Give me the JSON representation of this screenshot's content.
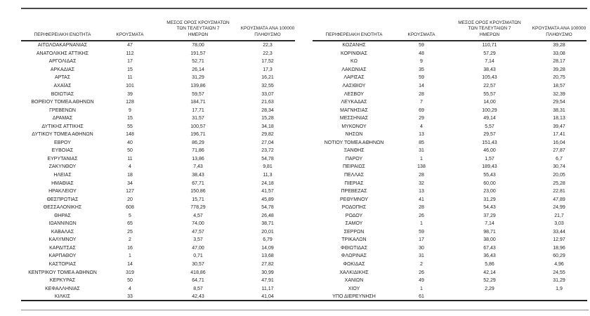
{
  "report": {
    "columns": {
      "region": "ΠΕΡΙΦΕΡΕΙΑΚΗ ΕΝΟΤΗΤΑ",
      "cases": "ΚΡΟΥΣΜΑΤΑ",
      "avg7": "ΜΕΣΟΣ ΟΡΟΣ ΚΡΟΥΣΜΑΤΩΝ\nΤΩΝ ΤΕΛΕΥΤΑΙΩΝ 7\nΗΜΕΡΩΝ",
      "per100k": "ΚΡΟΥΣΜΑΤΑ ΑΝΑ 100000\nΠΛΗΘΥΣΜΟ"
    },
    "left_table": {
      "rows": [
        [
          "ΑΙΤΩΛΟΑΚΑΡΝΑΝΙΑΣ",
          "47",
          "78,00",
          "22,3"
        ],
        [
          "ΑΝΑΤΟΛΙΚΗΣ ΑΤΤΙΚΗΣ",
          "112",
          "191,57",
          "22,3"
        ],
        [
          "ΑΡΓΟΛΙΔΑΣ",
          "17",
          "52,71",
          "17,52"
        ],
        [
          "ΑΡΚΑΔΙΑΣ",
          "15",
          "26,14",
          "17,3"
        ],
        [
          "ΑΡΤΑΣ",
          "11",
          "31,29",
          "16,21"
        ],
        [
          "ΑΧΑΪΑΣ",
          "101",
          "139,86",
          "32,55"
        ],
        [
          "ΒΟΙΩΤΙΑΣ",
          "39",
          "59,57",
          "33,07"
        ],
        [
          "ΒΟΡΕΙΟΥ ΤΟΜΕΑ ΑΘΗΝΩΝ",
          "128",
          "184,71",
          "21,63"
        ],
        [
          "ΓΡΕΒΕΝΩΝ",
          "9",
          "17,71",
          "28,34"
        ],
        [
          "ΔΡΑΜΑΣ",
          "15",
          "31,57",
          "15,28"
        ],
        [
          "ΔΥΤΙΚΗΣ ΑΤΤΙΚΗΣ",
          "55",
          "100,57",
          "34,18"
        ],
        [
          "ΔΥΤΙΚΟΥ ΤΟΜΕΑ ΑΘΗΝΩΝ",
          "148",
          "196,71",
          "29,82"
        ],
        [
          "ΕΒΡΟΥ",
          "40",
          "86,29",
          "27,04"
        ],
        [
          "ΕΥΒΟΙΑΣ",
          "50",
          "71,86",
          "23,72"
        ],
        [
          "ΕΥΡΥΤΑΝΙΑΣ",
          "11",
          "13,86",
          "54,78"
        ],
        [
          "ΖΑΚΥΝΘΟΥ",
          "4",
          "7,43",
          "9,81"
        ],
        [
          "ΗΛΕΙΑΣ",
          "18",
          "38,43",
          "11,3"
        ],
        [
          "ΗΜΑΘΙΑΣ",
          "34",
          "67,71",
          "24,18"
        ],
        [
          "ΗΡΑΚΛΕΙΟΥ",
          "127",
          "150,86",
          "41,57"
        ],
        [
          "ΘΕΣΠΡΩΤΙΑΣ",
          "20",
          "15,71",
          "45,89"
        ],
        [
          "ΘΕΣΣΑΛΟΝΙΚΗΣ",
          "608",
          "778,29",
          "54,78"
        ],
        [
          "ΘΗΡΑΣ",
          "5",
          "4,57",
          "26,48"
        ],
        [
          "ΙΩΑΝΝΙΝΩΝ",
          "65",
          "74,00",
          "38,71"
        ],
        [
          "ΚΑΒΑΛΑΣ",
          "25",
          "47,57",
          "20,01"
        ],
        [
          "ΚΑΛΥΜΝΟΥ",
          "2",
          "3,57",
          "6,79"
        ],
        [
          "ΚΑΡΔΙΤΣΑΣ",
          "16",
          "47,00",
          "14,09"
        ],
        [
          "ΚΑΡΠΑΘΟΥ",
          "1",
          "0,71",
          "13,68"
        ],
        [
          "ΚΑΣΤΟΡΙΑΣ",
          "14",
          "30,57",
          "27,82"
        ],
        [
          "ΚΕΝΤΡΙΚΟΥ ΤΟΜΕΑ ΑΘΗΝΩΝ",
          "319",
          "418,86",
          "30,99"
        ],
        [
          "ΚΕΡΚΥΡΑΣ",
          "50",
          "64,71",
          "47,91"
        ],
        [
          "ΚΕΦΑΛΛΗΝΙΑΣ",
          "4",
          "8,57",
          "11,17"
        ],
        [
          "ΚΙΛΚΙΣ",
          "33",
          "42,43",
          "41,04"
        ]
      ]
    },
    "right_table": {
      "rows": [
        [
          "ΚΟΖΑΝΗΣ",
          "59",
          "110,71",
          "39,28"
        ],
        [
          "ΚΟΡΙΝΘΙΑΣ",
          "48",
          "57,29",
          "33,08"
        ],
        [
          "ΚΩ",
          "9",
          "7,14",
          "28,17"
        ],
        [
          "ΛΑΚΩΝΙΑΣ",
          "35",
          "38,43",
          "39,28"
        ],
        [
          "ΛΑΡΙΣΑΣ",
          "59",
          "105,43",
          "20,75"
        ],
        [
          "ΛΑΣΙΘΙΟΥ",
          "14",
          "22,57",
          "18,57"
        ],
        [
          "ΛΕΣΒΟΥ",
          "28",
          "55,57",
          "32,39"
        ],
        [
          "ΛΕΥΚΑΔΑΣ",
          "7",
          "14,00",
          "29,54"
        ],
        [
          "ΜΑΓΝΗΣΙΑΣ",
          "69",
          "100,29",
          "38,31"
        ],
        [
          "ΜΕΣΣΗΝΙΑΣ",
          "29",
          "49,14",
          "18,13"
        ],
        [
          "ΜΥΚΟΝΟΥ",
          "4",
          "5,57",
          "39,47"
        ],
        [
          "ΝΗΣΩΝ",
          "13",
          "29,57",
          "17,41"
        ],
        [
          "ΝΟΤΙΟΥ ΤΟΜΕΑ ΑΘΗΝΩΝ",
          "85",
          "151,43",
          "16,04"
        ],
        [
          "ΞΑΝΘΗΣ",
          "31",
          "46,00",
          "27,87"
        ],
        [
          "ΠΑΡΟΥ",
          "1",
          "1,57",
          "6,7"
        ],
        [
          "ΠΕΙΡΑΙΩΣ",
          "138",
          "189,43",
          "30,74"
        ],
        [
          "ΠΕΛΛΑΣ",
          "28",
          "55,43",
          "20,05"
        ],
        [
          "ΠΙΕΡΙΑΣ",
          "32",
          "60,00",
          "25,28"
        ],
        [
          "ΠΡΕΒΕΖΑΣ",
          "13",
          "23,00",
          "22,81"
        ],
        [
          "ΡΕΘΥΜΝΟΥ",
          "41",
          "31,29",
          "47,89"
        ],
        [
          "ΡΟΔΟΠΗΣ",
          "28",
          "54,43",
          "24,99"
        ],
        [
          "ΡΟΔΟΥ",
          "26",
          "37,29",
          "21,7"
        ],
        [
          "ΣΑΜΟΥ",
          "1",
          "7,14",
          "3,03"
        ],
        [
          "ΣΕΡΡΩΝ",
          "59",
          "98,71",
          "33,44"
        ],
        [
          "ΤΡΙΚΑΛΩΝ",
          "17",
          "38,00",
          "12,97"
        ],
        [
          "ΦΘΙΩΤΙΔΑΣ",
          "30",
          "67,43",
          "18,96"
        ],
        [
          "ΦΛΩΡΙΝΑΣ",
          "31",
          "36,43",
          "60,29"
        ],
        [
          "ΦΩΚΙΔΑΣ",
          "2",
          "5,86",
          "4,96"
        ],
        [
          "ΧΑΛΚΙΔΙΚΗΣ",
          "26",
          "42,14",
          "24,55"
        ],
        [
          "ΧΑΝΙΩΝ",
          "49",
          "52,29",
          "31,29"
        ],
        [
          "ΧΙΟΥ",
          "1",
          "2,29",
          "1,9"
        ],
        [
          "ΥΠΟ ΔΙΕΡΕΥΝΗΣΗ",
          "61",
          "",
          ""
        ]
      ]
    }
  }
}
